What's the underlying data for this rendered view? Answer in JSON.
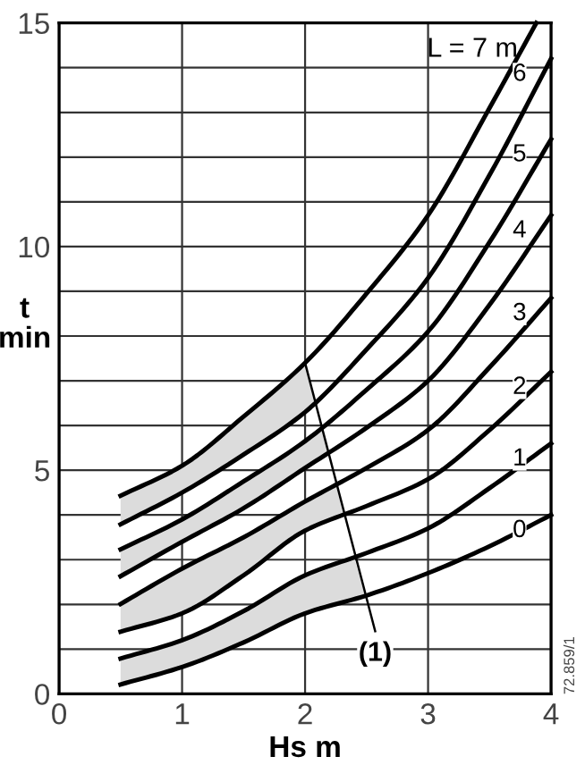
{
  "chart_data": {
    "type": "line",
    "xlabel": "Hs m",
    "ylabel": "t\nmin",
    "x": [
      0.5,
      1,
      1.5,
      2,
      2.5,
      3,
      3.5,
      4
    ],
    "xlim": [
      0,
      4
    ],
    "xticks": [
      0,
      1,
      2,
      3,
      4
    ],
    "ylim": [
      0,
      15
    ],
    "yticks": [
      0,
      {
        "value": 1,
        "label": null
      },
      {
        "value": 2,
        "label": null
      },
      {
        "value": 3,
        "label": null
      },
      {
        "value": 4,
        "label": null
      },
      5,
      {
        "value": 6,
        "label": null
      },
      {
        "value": 7,
        "label": null
      },
      {
        "value": 8,
        "label": null
      },
      {
        "value": 9,
        "label": null
      },
      10,
      {
        "value": 11,
        "label": null
      },
      {
        "value": 12,
        "label": null
      },
      {
        "value": 13,
        "label": null
      },
      {
        "value": 14,
        "label": null
      },
      15
    ],
    "grid": true,
    "legend": false,
    "marker": "none",
    "line_style": "solid",
    "series": [
      {
        "name": "0",
        "color": "#000000",
        "values": [
          0.21,
          0.6,
          1.15,
          1.8,
          2.2,
          2.7,
          3.3,
          4.0
        ]
      },
      {
        "name": "1",
        "color": "#000000",
        "values": [
          0.79,
          1.2,
          1.85,
          2.65,
          3.15,
          3.7,
          4.6,
          5.6
        ]
      },
      {
        "name": "2",
        "color": "#000000",
        "values": [
          1.39,
          1.8,
          2.65,
          3.65,
          4.2,
          4.8,
          5.9,
          7.2
        ]
      },
      {
        "name": "3",
        "color": "#000000",
        "values": [
          2.01,
          2.8,
          3.5,
          4.3,
          5.05,
          5.9,
          7.3,
          8.85
        ]
      },
      {
        "name": "4",
        "color": "#000000",
        "values": [
          2.63,
          3.4,
          4.15,
          5.05,
          5.95,
          7.0,
          8.7,
          10.7
        ]
      },
      {
        "name": "5",
        "color": "#000000",
        "values": [
          3.23,
          3.9,
          4.75,
          5.65,
          6.8,
          8.1,
          10.1,
          12.4
        ]
      },
      {
        "name": "6",
        "color": "#000000",
        "values": [
          3.79,
          4.5,
          5.35,
          6.3,
          7.7,
          9.3,
          11.6,
          14.2
        ]
      },
      {
        "name": "L = 7 m",
        "color": "#000000",
        "x": [
          0.5,
          1,
          1.5,
          2,
          2.5,
          3,
          3.5,
          3.88
        ],
        "values": [
          4.43,
          5.1,
          6.2,
          7.4,
          8.95,
          10.7,
          13.1,
          15
        ]
      },
      {
        "type": "line",
        "color": "#000000",
        "x": [
          2.0,
          2.57
        ],
        "values": [
          7.4,
          1.4
        ]
      }
    ],
    "annotations": [
      {
        "text": "(1)",
        "x": 2.57,
        "y": 1.4
      },
      "72.859/1"
    ]
  }
}
